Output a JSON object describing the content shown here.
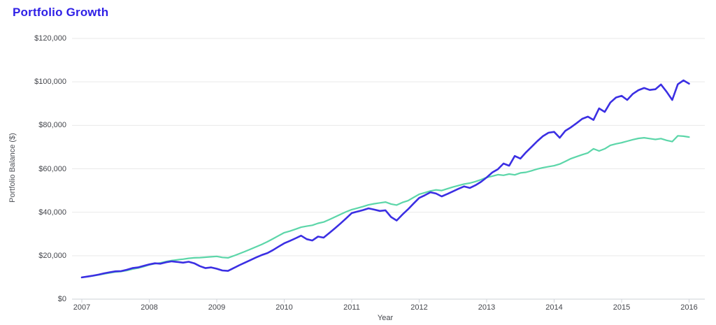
{
  "page": {
    "title": "Portfolio Growth"
  },
  "colors": {
    "title": "#2e1fe6",
    "blue_line": "#3b2fe3",
    "green_line": "#5cd6a9",
    "gridline": "#e9e9e9",
    "axis_line": "#cdd0d7",
    "tick_text": "#44464c",
    "axis_title_text": "#4f5258"
  },
  "chart_data": {
    "type": "line",
    "title": "Portfolio Growth",
    "xlabel": "Year",
    "ylabel": "Portfolio Balance ($)",
    "x_start_year": 2007,
    "x_end_year": 2016,
    "points_per_year": 12,
    "ylim": [
      0,
      120000
    ],
    "grid": "horizontal",
    "legend": "none",
    "y_ticks": [
      {
        "value": 0,
        "label": "$0"
      },
      {
        "value": 20000,
        "label": "$20,000"
      },
      {
        "value": 40000,
        "label": "$40,000"
      },
      {
        "value": 60000,
        "label": "$60,000"
      },
      {
        "value": 80000,
        "label": "$80,000"
      },
      {
        "value": 100000,
        "label": "$100,000"
      },
      {
        "value": 120000,
        "label": "$120,000"
      }
    ],
    "x_ticks": [
      {
        "value": 2007,
        "label": "2007"
      },
      {
        "value": 2008,
        "label": "2008"
      },
      {
        "value": 2009,
        "label": "2009"
      },
      {
        "value": 2010,
        "label": "2010"
      },
      {
        "value": 2011,
        "label": "2011"
      },
      {
        "value": 2012,
        "label": "2012"
      },
      {
        "value": 2013,
        "label": "2013"
      },
      {
        "value": 2014,
        "label": "2014"
      },
      {
        "value": 2015,
        "label": "2015"
      },
      {
        "value": 2016,
        "label": "2016"
      }
    ],
    "series": [
      {
        "id": "green",
        "color": "#5cd6a9",
        "stroke_width": 2.2,
        "values": [
          10000,
          10350,
          10700,
          11150,
          11650,
          12100,
          12500,
          12750,
          13200,
          13800,
          14300,
          15000,
          15800,
          16300,
          16700,
          17300,
          17800,
          18100,
          18400,
          18800,
          19000,
          19100,
          19300,
          19500,
          19700,
          19200,
          19000,
          19900,
          20900,
          21900,
          23000,
          24100,
          25200,
          26400,
          27800,
          29200,
          30600,
          31300,
          32200,
          33100,
          33600,
          34000,
          34900,
          35500,
          36600,
          37800,
          39000,
          40200,
          41200,
          41900,
          42600,
          43400,
          43900,
          44300,
          44700,
          43800,
          43300,
          44500,
          45300,
          46800,
          48300,
          49000,
          49800,
          50300,
          50000,
          50800,
          51600,
          52300,
          53000,
          53400,
          54100,
          55000,
          56000,
          56600,
          57300,
          57000,
          57600,
          57200,
          58100,
          58400,
          59100,
          59900,
          60500,
          61000,
          61400,
          62200,
          63400,
          64700,
          65600,
          66500,
          67300,
          69200,
          68200,
          69200,
          70800,
          71500,
          72000,
          72700,
          73400,
          74000,
          74300,
          73900,
          73500,
          73900,
          73100,
          72500,
          75200,
          75000,
          74600
        ]
      },
      {
        "id": "blue",
        "color": "#3b2fe3",
        "stroke_width": 2.6,
        "values": [
          10000,
          10400,
          10800,
          11300,
          11900,
          12400,
          12800,
          12900,
          13500,
          14300,
          14600,
          15300,
          16000,
          16500,
          16300,
          17000,
          17400,
          17100,
          16800,
          17200,
          16500,
          15200,
          14300,
          14600,
          14000,
          13200,
          13000,
          14300,
          15600,
          16800,
          18000,
          19200,
          20300,
          21200,
          22600,
          24200,
          25700,
          26800,
          28000,
          29200,
          27600,
          27000,
          28800,
          28300,
          30400,
          32600,
          34800,
          37200,
          39600,
          40300,
          41000,
          41800,
          41200,
          40600,
          40900,
          37800,
          36200,
          38900,
          41300,
          44000,
          46600,
          47800,
          49200,
          48600,
          47300,
          48400,
          49600,
          50800,
          51900,
          51200,
          52400,
          54000,
          56000,
          58300,
          59800,
          62400,
          61400,
          65900,
          64700,
          67600,
          70100,
          72700,
          75000,
          76600,
          77000,
          74300,
          77500,
          79100,
          81000,
          83000,
          84000,
          82500,
          87800,
          86200,
          90500,
          92800,
          93600,
          91700,
          94500,
          96200,
          97200,
          96300,
          96600,
          98800,
          95500,
          91700,
          98900,
          100700,
          99200
        ]
      }
    ]
  }
}
